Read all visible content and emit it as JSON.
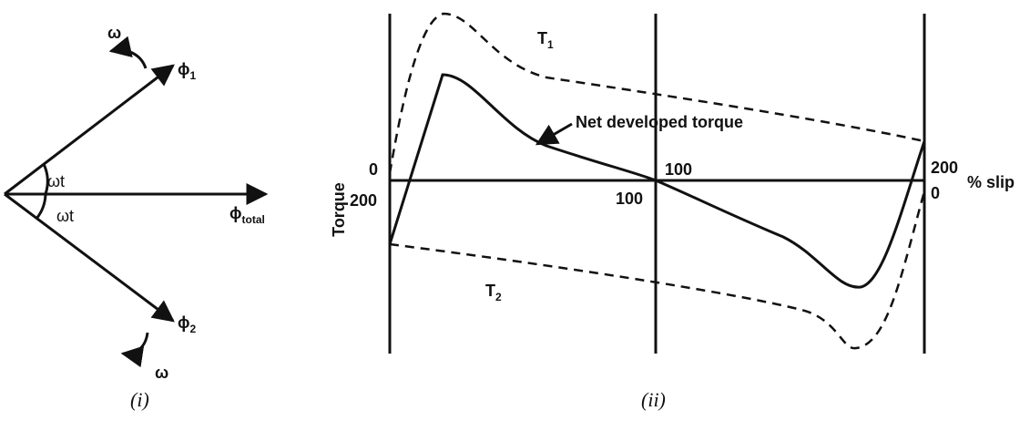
{
  "figure_i": {
    "omega_top": "ω",
    "phi_1": {
      "symbol": "ϕ",
      "subscript": "1"
    },
    "angle_top": "ωt",
    "angle_bottom": "ωt",
    "phi_total": {
      "symbol": "ϕ",
      "subscript": "total"
    },
    "phi_2": {
      "symbol": "ϕ",
      "subscript": "2"
    },
    "omega_bottom": "ω",
    "caption": "(i)"
  },
  "figure_ii": {
    "curve_t1": {
      "symbol": "T",
      "subscript": "1"
    },
    "curve_t2": {
      "symbol": "T",
      "subscript": "2"
    },
    "net_label": "Net developed torque",
    "y_label": "Torque",
    "left_top": "0",
    "left_bottom": "200",
    "mid_top": "100",
    "mid_bottom": "100",
    "right_top": "200",
    "right_bottom": "0",
    "x_label": "% slip",
    "caption": "(ii)"
  }
}
